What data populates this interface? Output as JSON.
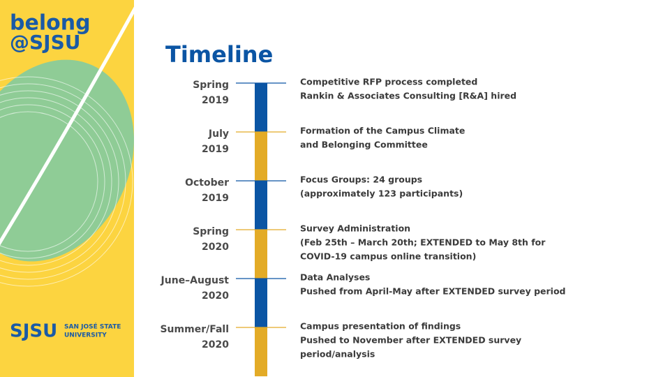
{
  "logo": {
    "line1": "belong",
    "line2": "@SJSU"
  },
  "footer_logo": {
    "mark": "SJSU",
    "line1": "SAN JOSÉ STATE",
    "line2": "UNIVERSITY"
  },
  "title": "Timeline",
  "items": [
    {
      "date": [
        "Spring",
        "2019"
      ],
      "lines": [
        "Competitive RFP process completed",
        "Rankin & Associates Consulting [R&A] hired"
      ]
    },
    {
      "date": [
        "July",
        "2019"
      ],
      "lines": [
        "Formation of the Campus Climate",
        "and Belonging Committee"
      ]
    },
    {
      "date": [
        "October",
        "2019"
      ],
      "lines": [
        "Focus Groups: 24 groups",
        "(approximately 123 participants)"
      ]
    },
    {
      "date": [
        "Spring",
        "2020"
      ],
      "lines": [
        "Survey Administration",
        "(Feb 25th – March 20th; EXTENDED to May 8th for",
        "COVID-19 campus online transition)"
      ]
    },
    {
      "date": [
        "June–August",
        "2020"
      ],
      "lines": [
        "Data Analyses",
        "Pushed from April-May after EXTENDED survey period"
      ]
    },
    {
      "date": [
        "Summer/Fall",
        "2020"
      ],
      "lines": [
        "Campus presentation of findings",
        "Pushed to November after EXTENDED survey",
        "period/analysis"
      ]
    }
  ]
}
